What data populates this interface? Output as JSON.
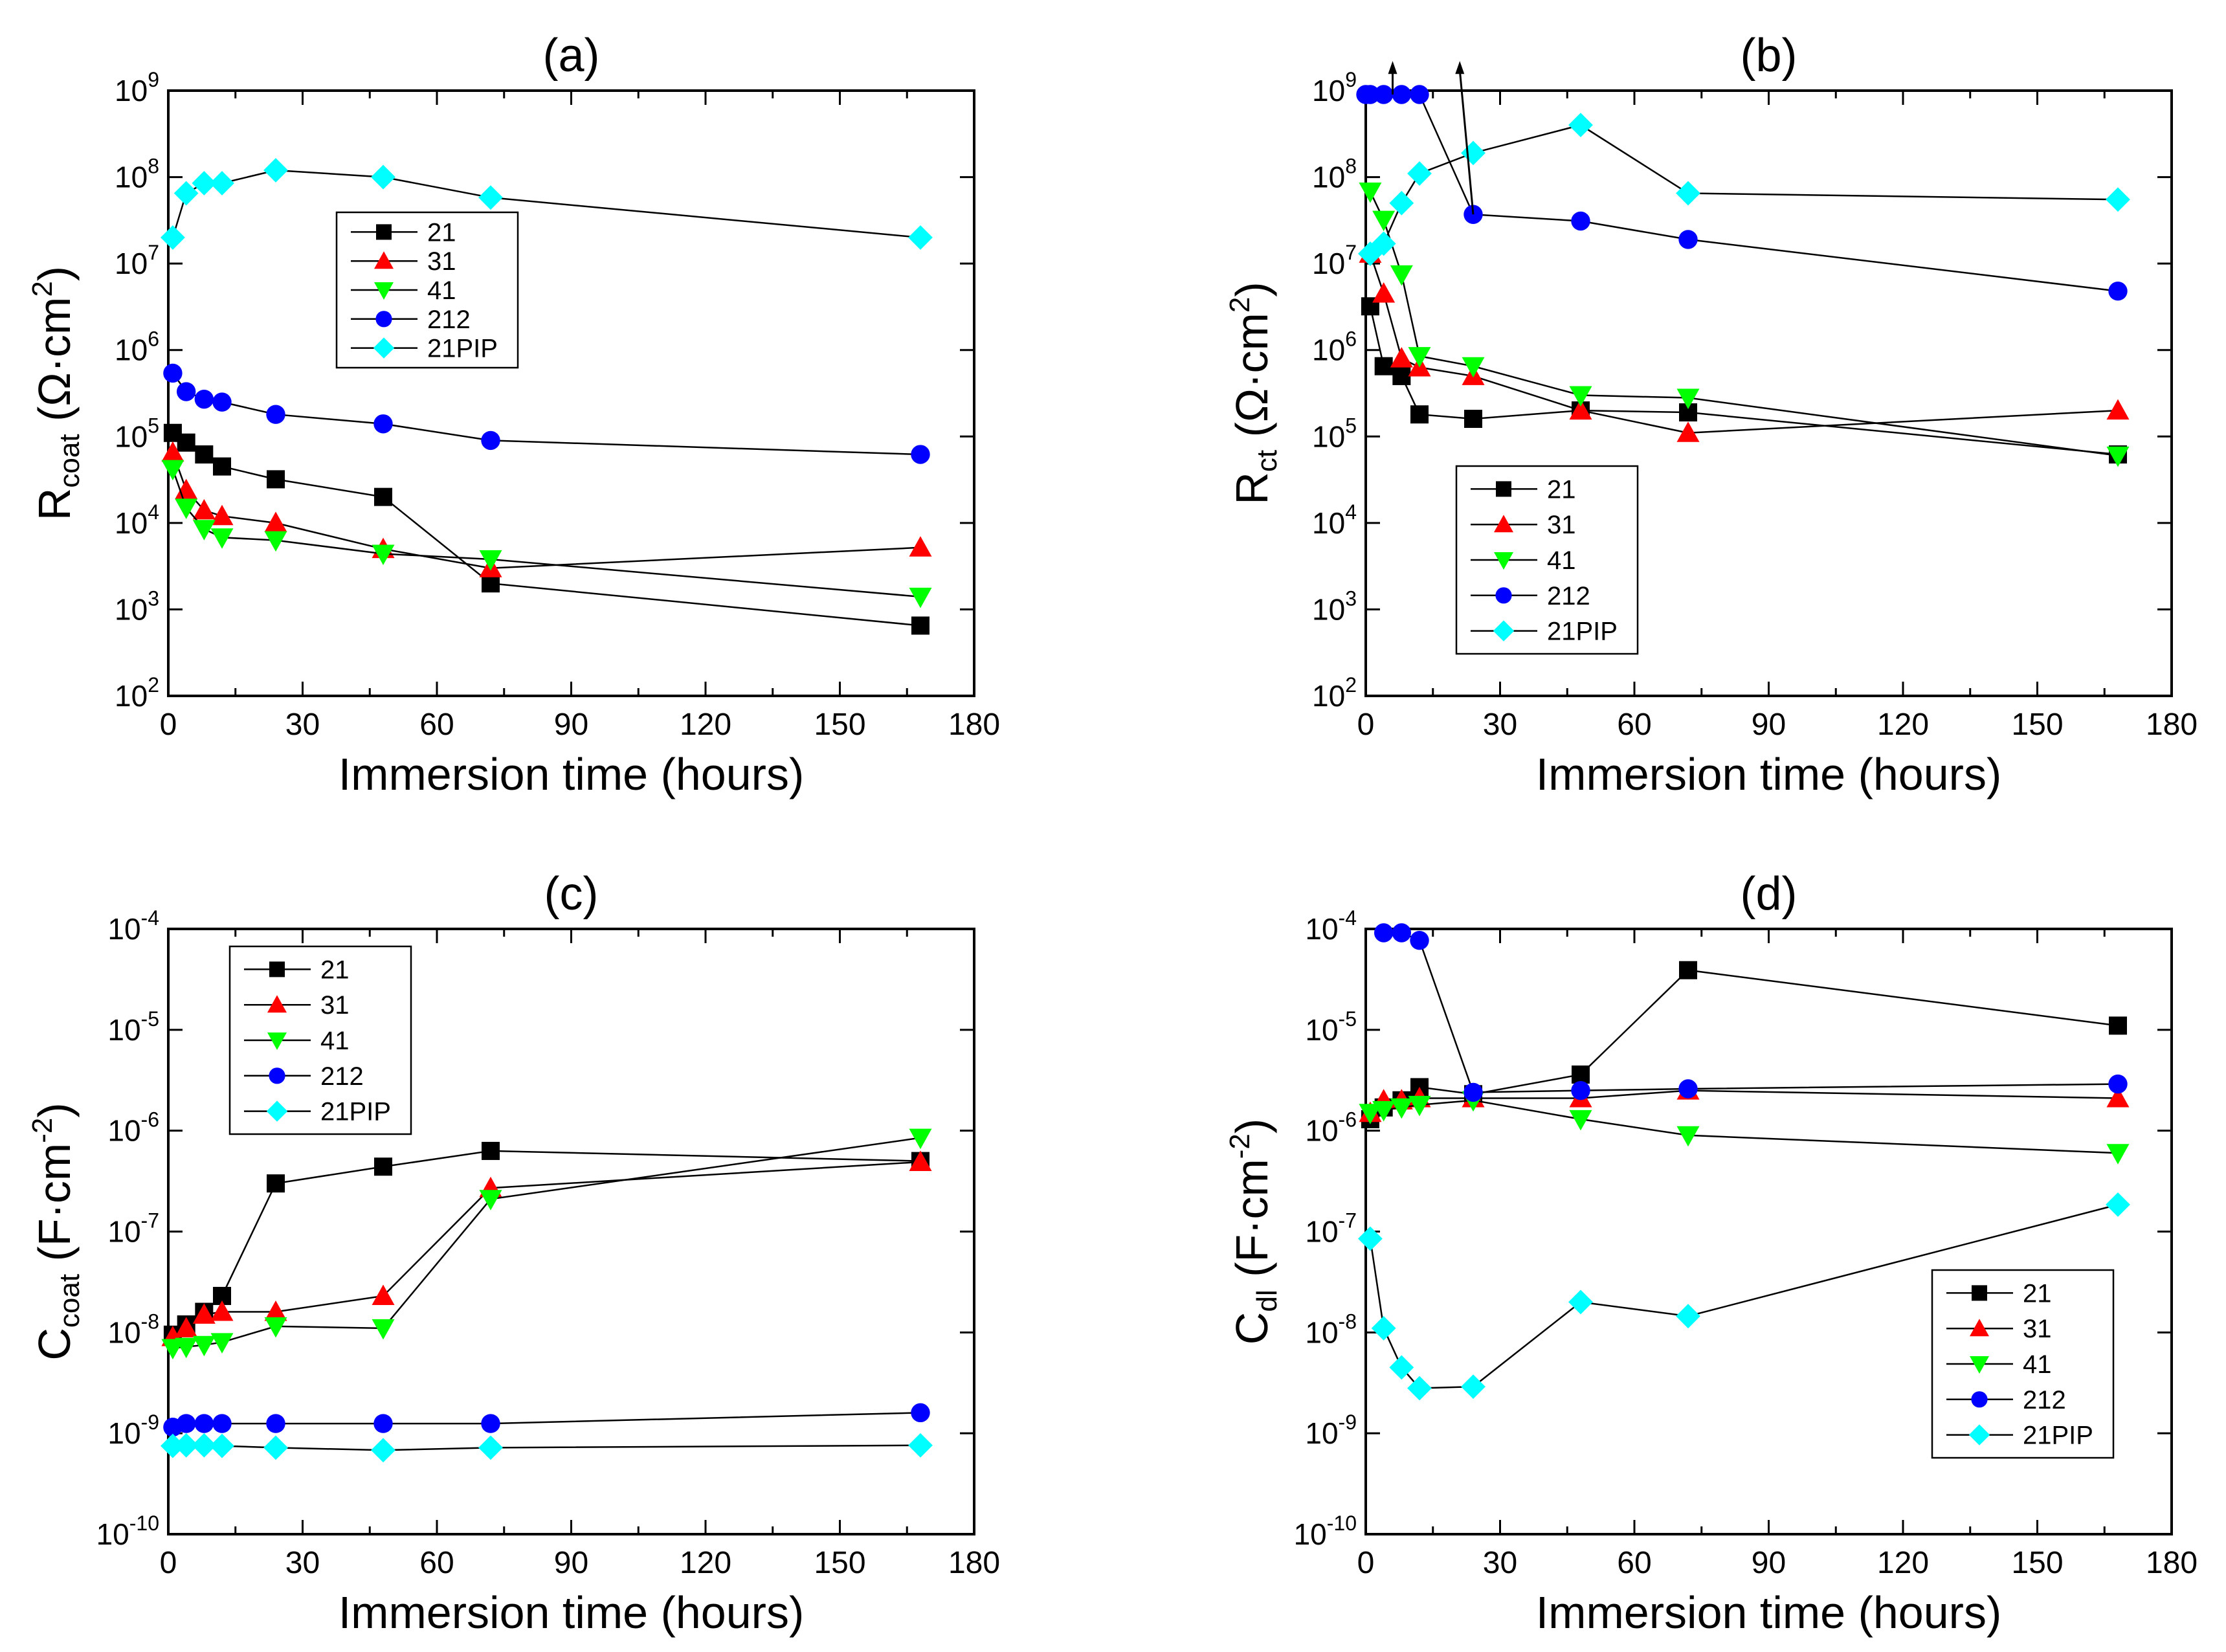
{
  "chart_data": [
    {
      "id": "a",
      "type": "scatter",
      "title": "(a)",
      "ylabel": {
        "main": "R",
        "sub": "coat",
        "unit": "(Ω·cm",
        "sup": "2",
        "tail": ")"
      },
      "xlabel": "Immersion time (hours)",
      "xlim": [
        0,
        180
      ],
      "xticks": [
        "0",
        "30",
        "60",
        "90",
        "120",
        "150",
        "180"
      ],
      "ylim_exp": [
        2,
        9
      ],
      "ytick_exps": [
        "2",
        "3",
        "4",
        "5",
        "6",
        "7",
        "8",
        "9"
      ],
      "legend_position": "upper-middle",
      "series": [
        {
          "name": "21",
          "x": [
            1,
            4,
            8,
            12,
            24,
            48,
            72,
            168
          ],
          "y": [
            110000.0,
            85000.0,
            62000.0,
            45000.0,
            32000.0,
            20000.0,
            2000.0,
            650
          ]
        },
        {
          "name": "31",
          "x": [
            1,
            4,
            8,
            12,
            24,
            48,
            72,
            168
          ],
          "y": [
            65000.0,
            24000.0,
            14000.0,
            12000.0,
            10000.0,
            5000.0,
            3000.0,
            5200.0
          ]
        },
        {
          "name": "41",
          "x": [
            1,
            4,
            8,
            12,
            24,
            48,
            72,
            168
          ],
          "y": [
            42000.0,
            15000.0,
            8500.0,
            6800.0,
            6300.0,
            4400.0,
            3800.0,
            1400.0
          ]
        },
        {
          "name": "212",
          "x": [
            1,
            4,
            8,
            12,
            24,
            48,
            72,
            168
          ],
          "y": [
            540000.0,
            330000.0,
            270000.0,
            250000.0,
            180000.0,
            140000.0,
            90000.0,
            62000.0
          ]
        },
        {
          "name": "21PIP",
          "x": [
            1,
            4,
            8,
            12,
            24,
            48,
            72,
            168
          ],
          "y": [
            20000000.0,
            65000000.0,
            85000000.0,
            85000000.0,
            120000000.0,
            100000000.0,
            58000000.0,
            20000000.0
          ]
        }
      ]
    },
    {
      "id": "b",
      "type": "scatter",
      "title": "(b)",
      "ylabel": {
        "main": "R",
        "sub": "ct",
        "unit": "(Ω·cm",
        "sup": "2",
        "tail": ")"
      },
      "xlabel": "Immersion time (hours)",
      "xlim": [
        0,
        180
      ],
      "xticks": [
        "0",
        "30",
        "60",
        "90",
        "120",
        "150",
        "180"
      ],
      "ylim_exp": [
        2,
        9
      ],
      "ytick_exps": [
        "2",
        "3",
        "4",
        "5",
        "6",
        "7",
        "8",
        "9"
      ],
      "legend_position": "lower-left",
      "annotations": [
        {
          "kind": "arrow",
          "from": [
            6,
            1250000000.0
          ],
          "to": [
            6,
            2200000000.0
          ]
        },
        {
          "kind": "arrow",
          "from": [
            24,
            37000000.0
          ],
          "to": [
            21,
            2200000000.0
          ]
        }
      ],
      "series": [
        {
          "name": "21",
          "x": [
            1,
            4,
            8,
            12,
            24,
            48,
            72,
            168
          ],
          "y": [
            3200000.0,
            650000.0,
            500000.0,
            180000.0,
            160000.0,
            200000.0,
            190000.0,
            62000.0
          ]
        },
        {
          "name": "31",
          "x": [
            1,
            4,
            8,
            12,
            24,
            48,
            72,
            168
          ],
          "y": [
            13000000.0,
            4500000.0,
            800000.0,
            630000.0,
            500000.0,
            200000.0,
            110000.0,
            200000.0
          ]
        },
        {
          "name": "41",
          "x": [
            1,
            4,
            8,
            12,
            24,
            48,
            72,
            168
          ],
          "y": [
            68000000.0,
            32000000.0,
            7500000.0,
            850000.0,
            650000.0,
            300000.0,
            280000.0,
            60000.0
          ]
        },
        {
          "name": "212",
          "x": [
            0,
            1,
            4,
            8,
            12,
            24,
            48,
            72,
            168
          ],
          "y": [
            1250000000.0,
            1250000000.0,
            1250000000.0,
            1250000000.0,
            1250000000.0,
            37000000.0,
            31000000.0,
            19000000.0,
            4800000.0
          ]
        },
        {
          "name": "21PIP",
          "x": [
            1,
            4,
            8,
            12,
            24,
            48,
            72,
            168
          ],
          "y": [
            13000000.0,
            17000000.0,
            50000000.0,
            110000000.0,
            190000000.0,
            400000000.0,
            65000000.0,
            55000000.0
          ]
        }
      ]
    },
    {
      "id": "c",
      "type": "scatter",
      "title": "(c)",
      "ylabel": {
        "main": "C",
        "sub": "coat",
        "unit": "(F·cm",
        "sup": "-2",
        "tail": ")"
      },
      "xlabel": "Immersion time (hours)",
      "xlim": [
        0,
        180
      ],
      "xticks": [
        "0",
        "30",
        "60",
        "90",
        "120",
        "150",
        "180"
      ],
      "ylim_exp": [
        -10,
        -4
      ],
      "ytick_exps": [
        "-10",
        "-9",
        "-8",
        "-7",
        "-6",
        "-5",
        "-4"
      ],
      "legend_position": "upper-left",
      "series": [
        {
          "name": "21",
          "x": [
            1,
            4,
            8,
            12,
            24,
            48,
            72,
            168
          ],
          "y": [
            9.5e-09,
            1.2e-08,
            1.6e-08,
            2.3e-08,
            3e-07,
            4.4e-07,
            6.3e-07,
            5e-07
          ]
        },
        {
          "name": "31",
          "x": [
            1,
            4,
            8,
            12,
            24,
            48,
            72,
            168
          ],
          "y": [
            9e-09,
            1.1e-08,
            1.5e-08,
            1.6e-08,
            1.6e-08,
            2.3e-08,
            2.7e-07,
            4.9e-07
          ]
        },
        {
          "name": "41",
          "x": [
            1,
            4,
            8,
            12,
            24,
            48,
            72,
            168
          ],
          "y": [
            7e-09,
            7.2e-09,
            7.5e-09,
            8e-09,
            1.15e-08,
            1.1e-08,
            2.1e-07,
            8.5e-07
          ]
        },
        {
          "name": "212",
          "x": [
            1,
            4,
            8,
            12,
            24,
            48,
            72,
            168
          ],
          "y": [
            1.15e-09,
            1.25e-09,
            1.25e-09,
            1.25e-09,
            1.25e-09,
            1.25e-09,
            1.25e-09,
            1.6e-09
          ]
        },
        {
          "name": "21PIP",
          "x": [
            1,
            4,
            8,
            12,
            24,
            48,
            72,
            168
          ],
          "y": [
            7.5e-10,
            7.6e-10,
            7.6e-10,
            7.5e-10,
            7.2e-10,
            6.8e-10,
            7.2e-10,
            7.6e-10
          ]
        }
      ]
    },
    {
      "id": "d",
      "type": "scatter",
      "title": "(d)",
      "ylabel": {
        "main": "C",
        "sub": "dl",
        "unit": "(F·cm",
        "sup": "-2",
        "tail": ")"
      },
      "xlabel": "Immersion time (hours)",
      "xlim": [
        0,
        180
      ],
      "xticks": [
        "0",
        "30",
        "60",
        "90",
        "120",
        "150",
        "180"
      ],
      "ylim_exp": [
        -10,
        -4
      ],
      "ytick_exps": [
        "-10",
        "-9",
        "-8",
        "-7",
        "-6",
        "-5",
        "-4"
      ],
      "legend_position": "lower-right",
      "series": [
        {
          "name": "21",
          "x": [
            1,
            4,
            8,
            12,
            24,
            48,
            72,
            168
          ],
          "y": [
            1.3e-06,
            1.7e-06,
            2e-06,
            2.7e-06,
            2.3e-06,
            3.6e-06,
            3.9e-05,
            1.1e-05
          ]
        },
        {
          "name": "31",
          "x": [
            1,
            4,
            8,
            12,
            24,
            48,
            72,
            168
          ],
          "y": [
            1.5e-06,
            2e-06,
            2e-06,
            2.1e-06,
            2.1e-06,
            2.1e-06,
            2.5e-06,
            2.1e-06
          ]
        },
        {
          "name": "41",
          "x": [
            1,
            4,
            8,
            12,
            24,
            48,
            72,
            168
          ],
          "y": [
            1.5e-06,
            1.6e-06,
            1.7e-06,
            1.8e-06,
            2e-06,
            1.3e-06,
            9e-07,
            6e-07
          ]
        },
        {
          "name": "212",
          "x": [
            4,
            8,
            12,
            24,
            48,
            72,
            168
          ],
          "y": [
            0.0001,
            9.5e-05,
            7.7e-05,
            2.4e-06,
            2.5e-06,
            2.6e-06,
            2.9e-06
          ]
        },
        {
          "name": "21PIP",
          "x": [
            1,
            4,
            8,
            12,
            24,
            48,
            72,
            168
          ],
          "y": [
            8.5e-08,
            1.1e-08,
            4.5e-09,
            2.8e-09,
            2.9e-09,
            2e-08,
            1.45e-08,
            1.85e-07
          ]
        }
      ]
    }
  ],
  "series_styles": {
    "21": {
      "marker": "square",
      "color": "#000000"
    },
    "31": {
      "marker": "triangle-up",
      "color": "#ff0000"
    },
    "41": {
      "marker": "triangle-down",
      "color": "#00ff00"
    },
    "212": {
      "marker": "circle",
      "color": "#0000ff"
    },
    "21PIP": {
      "marker": "diamond",
      "color": "#00ffff"
    }
  },
  "axis_base_label": "10"
}
